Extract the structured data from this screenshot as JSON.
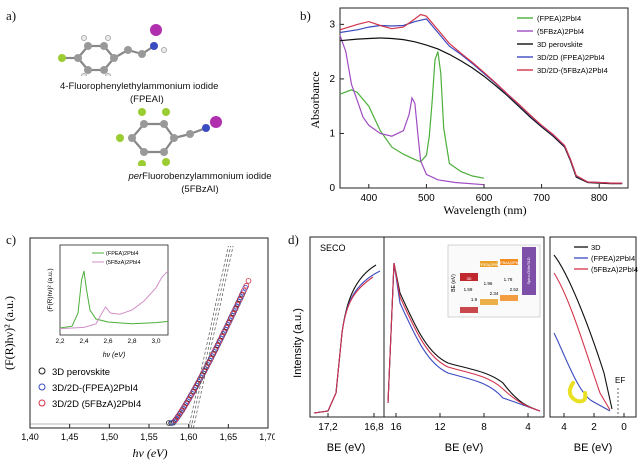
{
  "panels": {
    "a": {
      "label": "a)",
      "molecule1": {
        "name": "4-Fluorophenylethylammonium iodide",
        "abbr": "(FPEAI)"
      },
      "molecule2": {
        "name_italic": "per",
        "name_rest": "Fluorobenzylammonium iodide",
        "abbr": "(5FBzAI)"
      }
    },
    "b": {
      "label": "b)"
    },
    "c": {
      "label": "c)"
    },
    "d": {
      "label": "d)"
    }
  },
  "chart_data": [
    {
      "id": "absorbance",
      "type": "line",
      "xlabel": "Wavelength (nm)",
      "ylabel": "Absorbance",
      "xlim": [
        350,
        850
      ],
      "ylim": [
        0,
        3.3
      ],
      "xticks": [
        400,
        500,
        600,
        700,
        800
      ],
      "yticks": [
        0,
        1,
        2,
        3
      ],
      "legend_placement": "top-right",
      "series": [
        {
          "name": "(FPEA)2PbI4",
          "color": "#4caf3a",
          "x": [
            350,
            370,
            380,
            400,
            420,
            440,
            460,
            480,
            490,
            500,
            505,
            510,
            515,
            520,
            525,
            530,
            540,
            560,
            580,
            600
          ],
          "y": [
            1.72,
            1.8,
            1.75,
            1.5,
            1.05,
            0.75,
            0.62,
            0.52,
            0.48,
            0.6,
            0.95,
            1.6,
            2.35,
            2.5,
            2.1,
            1.1,
            0.45,
            0.3,
            0.22,
            0.18
          ]
        },
        {
          "name": "(5FBzA)2PbI4",
          "color": "#a04cc2",
          "x": [
            350,
            360,
            370,
            380,
            390,
            400,
            420,
            440,
            460,
            470,
            475,
            480,
            485,
            490,
            500,
            520,
            550,
            600
          ],
          "y": [
            2.8,
            2.5,
            1.9,
            1.6,
            1.3,
            1.15,
            1.0,
            0.95,
            1.05,
            1.35,
            1.65,
            1.55,
            1.0,
            0.5,
            0.25,
            0.15,
            0.1,
            0.06
          ]
        },
        {
          "name": "3D perovskite",
          "color": "#111111",
          "x": [
            350,
            380,
            400,
            420,
            440,
            460,
            480,
            500,
            520,
            540,
            560,
            580,
            600,
            620,
            640,
            660,
            680,
            700,
            720,
            740,
            750,
            760,
            780,
            800,
            820,
            840
          ],
          "y": [
            2.7,
            2.73,
            2.74,
            2.75,
            2.74,
            2.72,
            2.68,
            2.62,
            2.55,
            2.45,
            2.33,
            2.2,
            2.05,
            1.88,
            1.7,
            1.5,
            1.3,
            1.12,
            0.95,
            0.75,
            0.5,
            0.2,
            0.1,
            0.09,
            0.08,
            0.08
          ]
        },
        {
          "name": "3D/2D (FPEA)2PbI4",
          "color": "#3b4bc0",
          "x": [
            350,
            380,
            400,
            420,
            440,
            460,
            480,
            500,
            520,
            540,
            560,
            580,
            600,
            620,
            640,
            660,
            680,
            700,
            720,
            740,
            750,
            760,
            780,
            800,
            820,
            840
          ],
          "y": [
            2.85,
            2.9,
            2.95,
            2.98,
            2.97,
            2.98,
            3.05,
            3.1,
            2.85,
            2.6,
            2.45,
            2.28,
            2.1,
            1.92,
            1.72,
            1.53,
            1.33,
            1.14,
            0.97,
            0.77,
            0.52,
            0.22,
            0.11,
            0.1,
            0.09,
            0.09
          ]
        },
        {
          "name": "3D/2D-(5FBzA)2PbI4",
          "color": "#d2334a",
          "x": [
            350,
            380,
            400,
            420,
            440,
            460,
            480,
            490,
            500,
            520,
            540,
            560,
            580,
            600,
            620,
            640,
            660,
            680,
            700,
            720,
            740,
            750,
            760,
            780,
            800,
            820,
            840
          ],
          "y": [
            2.9,
            3.0,
            3.05,
            2.98,
            2.92,
            2.95,
            3.1,
            3.18,
            3.15,
            2.9,
            2.65,
            2.47,
            2.3,
            2.12,
            1.93,
            1.73,
            1.54,
            1.34,
            1.15,
            0.98,
            0.78,
            0.53,
            0.23,
            0.11,
            0.1,
            0.09,
            0.09
          ]
        }
      ]
    },
    {
      "id": "tauc",
      "type": "scatter",
      "xlabel": "hν (eV)",
      "ylabel": "(F(R)hν)² (a.u.)",
      "xlim": [
        1.4,
        1.7
      ],
      "xticks": [
        "1,40",
        "1,45",
        "1,50",
        "1,55",
        "1,60",
        "1,65",
        "1,70"
      ],
      "legend_placement": "bottom-left",
      "series": [
        {
          "name": "3D perovskite",
          "color": "#222222"
        },
        {
          "name": "3D/2D-(FPEA)2PbI4",
          "color": "#3b4bc0"
        },
        {
          "name": "3D/2D (5FBzA)2PbI4",
          "color": "#d2334a"
        }
      ],
      "onset_ev": 1.6,
      "inset": {
        "xlabel": "hν (eV)",
        "ylabel": "(F(R)hν)² (a.u.)",
        "xlim": [
          2.2,
          3.1
        ],
        "xticks": [
          "2,2",
          "2,4",
          "2,6",
          "2,8",
          "3,0"
        ],
        "series": [
          {
            "name": "(FPEA)2PbI4",
            "color": "#4caf3a",
            "x": [
              2.2,
              2.3,
              2.35,
              2.38,
              2.4,
              2.42,
              2.45,
              2.5,
              2.6,
              2.8,
              3.0,
              3.1
            ],
            "y": [
              0.05,
              0.08,
              0.3,
              0.85,
              1.0,
              0.7,
              0.35,
              0.2,
              0.15,
              0.12,
              0.14,
              0.16
            ]
          },
          {
            "name": "(5FBzA)2PbI4",
            "color": "#d28fc8",
            "x": [
              2.2,
              2.4,
              2.5,
              2.55,
              2.58,
              2.62,
              2.7,
              2.8,
              2.9,
              3.0,
              3.05,
              3.1
            ],
            "y": [
              0.04,
              0.06,
              0.12,
              0.3,
              0.4,
              0.3,
              0.28,
              0.35,
              0.5,
              0.72,
              0.9,
              1.0
            ]
          }
        ]
      }
    },
    {
      "id": "ups",
      "type": "line",
      "ylabel": "Intensity (a.u.)",
      "xlabel": "BE (eV)",
      "subpanels": [
        {
          "title": "SECO",
          "xticks": [
            "17,2",
            "16,8"
          ]
        },
        {
          "xticks": [
            "16",
            "12",
            "8",
            "4"
          ]
        },
        {
          "xticks": [
            "4",
            "2",
            "0"
          ],
          "annotation": "EF"
        }
      ],
      "legend_placement": "top-right",
      "series": [
        {
          "name": "3D",
          "color": "#111111"
        },
        {
          "name": "(FPEA)2PbI4",
          "color": "#3b4bc0"
        },
        {
          "name": "(5FBzA)2PbI4",
          "color": "#d2334a"
        }
      ],
      "inset_diagram": {
        "ylabel": "BE (eV)",
        "levels": [
          {
            "name": "3D",
            "color": "#c0282d"
          },
          {
            "name": "(FPEA)2PbI4",
            "color": "#e8a22a"
          },
          {
            "name": "(5FBzA)2PbI4",
            "color": "#f28c1e"
          },
          {
            "name": "Spiro-OMeTAD",
            "color": "#7e4fa8"
          }
        ],
        "gaps": [
          "1.59",
          "1.9",
          "1.96",
          "2.34",
          "1.78",
          "2.52"
        ]
      }
    }
  ]
}
